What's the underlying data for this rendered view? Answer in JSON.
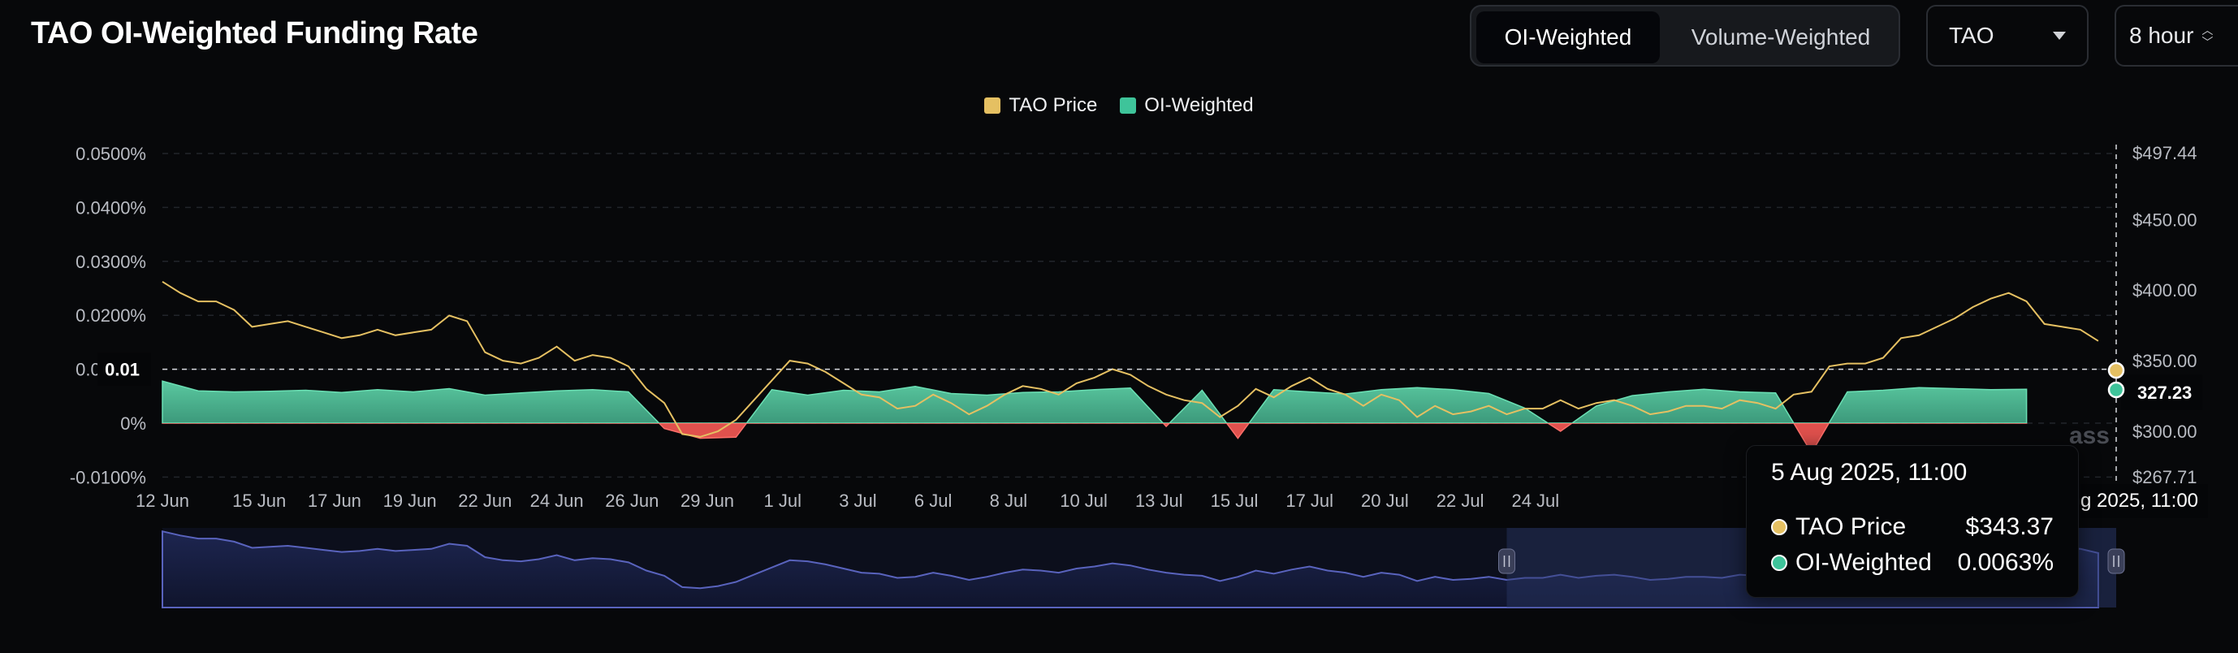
{
  "title": "TAO OI-Weighted Funding Rate",
  "toggle": {
    "options": [
      "OI-Weighted",
      "Volume-Weighted"
    ],
    "active": "OI-Weighted"
  },
  "symbol_select": {
    "value": "TAO"
  },
  "interval_select": {
    "value": "8 hour"
  },
  "colors": {
    "price": "#e5c062",
    "funding_pos": "#3ec49a",
    "funding_neg": "#e0514d",
    "navigator": "#5963bd",
    "background": "#07080a"
  },
  "icons": {
    "dropdown": "caret-down-icon",
    "interval": "up-down-chevron-icon",
    "slider": "drag-handle-icon"
  },
  "crosshair": {
    "y_label": "0.01",
    "price_label": "327.23",
    "x_label": "5 Aug 2025, 11:00",
    "x_label_visible": "g 2025, 11:00"
  },
  "tooltip": {
    "date": "5 Aug 2025, 11:00",
    "rows": [
      {
        "name": "TAO Price",
        "value": "$343.37"
      },
      {
        "name": "OI-Weighted",
        "value": "0.0063%"
      }
    ]
  },
  "watermark": "ass",
  "chart_data": {
    "type": "area",
    "legend": [
      "TAO Price",
      "OI-Weighted"
    ],
    "legend_position": "top-center",
    "grid": true,
    "x_ticks": [
      "12 Jun",
      "15 Jun",
      "17 Jun",
      "19 Jun",
      "22 Jun",
      "24 Jun",
      "26 Jun",
      "29 Jun",
      "1 Jul",
      "3 Jul",
      "6 Jul",
      "8 Jul",
      "10 Jul",
      "13 Jul",
      "15 Jul",
      "17 Jul",
      "20 Jul",
      "22 Jul",
      "24 Jul"
    ],
    "y_left_ticks": [
      "0.0500%",
      "0.0400%",
      "0.0300%",
      "0.0200%",
      "0.0100%",
      "0%",
      "-0.0100%"
    ],
    "y_left_range": [
      -0.01,
      0.05
    ],
    "y_right_ticks": [
      "$497.44",
      "$450.00",
      "$400.00",
      "$350.00",
      "$300.00",
      "$267.71"
    ],
    "y_right_range": [
      267.71,
      497.44
    ],
    "x_range_days": [
      0,
      54.5
    ],
    "series": [
      {
        "name": "TAO Price",
        "axis": "right",
        "points": [
          [
            0,
            406
          ],
          [
            0.5,
            398
          ],
          [
            1,
            392
          ],
          [
            1.5,
            392
          ],
          [
            2,
            386
          ],
          [
            2.5,
            374
          ],
          [
            3,
            376
          ],
          [
            3.5,
            378
          ],
          [
            4,
            374
          ],
          [
            4.5,
            370
          ],
          [
            5,
            366
          ],
          [
            5.5,
            368
          ],
          [
            6,
            372
          ],
          [
            6.5,
            368
          ],
          [
            7,
            370
          ],
          [
            7.5,
            372
          ],
          [
            8,
            382
          ],
          [
            8.5,
            378
          ],
          [
            9,
            356
          ],
          [
            9.5,
            350
          ],
          [
            10,
            348
          ],
          [
            10.5,
            352
          ],
          [
            11,
            360
          ],
          [
            11.5,
            350
          ],
          [
            12,
            354
          ],
          [
            12.5,
            352
          ],
          [
            13,
            346
          ],
          [
            13.5,
            330
          ],
          [
            14,
            320
          ],
          [
            14.5,
            298
          ],
          [
            15,
            296
          ],
          [
            15.5,
            300
          ],
          [
            16,
            308
          ],
          [
            16.5,
            322
          ],
          [
            17,
            336
          ],
          [
            17.5,
            350
          ],
          [
            18,
            348
          ],
          [
            18.5,
            342
          ],
          [
            19,
            334
          ],
          [
            19.5,
            326
          ],
          [
            20,
            324
          ],
          [
            20.5,
            316
          ],
          [
            21,
            318
          ],
          [
            21.5,
            326
          ],
          [
            22,
            320
          ],
          [
            22.5,
            312
          ],
          [
            23,
            318
          ],
          [
            23.5,
            326
          ],
          [
            24,
            332
          ],
          [
            24.5,
            330
          ],
          [
            25,
            326
          ],
          [
            25.5,
            334
          ],
          [
            26,
            338
          ],
          [
            26.5,
            344
          ],
          [
            27,
            340
          ],
          [
            27.5,
            332
          ],
          [
            28,
            326
          ],
          [
            28.5,
            322
          ],
          [
            29,
            320
          ],
          [
            29.5,
            310
          ],
          [
            30,
            318
          ],
          [
            30.5,
            330
          ],
          [
            31,
            324
          ],
          [
            31.5,
            332
          ],
          [
            32,
            338
          ],
          [
            32.5,
            330
          ],
          [
            33,
            326
          ],
          [
            33.5,
            318
          ],
          [
            34,
            326
          ],
          [
            34.5,
            322
          ],
          [
            35,
            310
          ],
          [
            35.5,
            318
          ],
          [
            36,
            312
          ],
          [
            36.5,
            314
          ],
          [
            37,
            318
          ],
          [
            37.5,
            312
          ],
          [
            38,
            316
          ],
          [
            38.5,
            316
          ],
          [
            39,
            322
          ],
          [
            39.5,
            316
          ],
          [
            40,
            320
          ],
          [
            40.5,
            322
          ],
          [
            41,
            318
          ],
          [
            41.5,
            312
          ],
          [
            42,
            314
          ],
          [
            42.5,
            318
          ],
          [
            43,
            318
          ],
          [
            43.5,
            316
          ],
          [
            44,
            322
          ],
          [
            44.5,
            320
          ],
          [
            45,
            316
          ],
          [
            45.5,
            326
          ],
          [
            46,
            328
          ],
          [
            46.5,
            346
          ],
          [
            47,
            348
          ],
          [
            47.5,
            348
          ],
          [
            48,
            352
          ],
          [
            48.5,
            366
          ],
          [
            49,
            368
          ],
          [
            49.5,
            374
          ],
          [
            50,
            380
          ],
          [
            50.5,
            388
          ],
          [
            51,
            394
          ],
          [
            51.5,
            398
          ],
          [
            52,
            392
          ],
          [
            52.5,
            376
          ],
          [
            53,
            374
          ],
          [
            53.5,
            372
          ],
          [
            54,
            364
          ]
        ]
      },
      {
        "name": "OI-Weighted",
        "axis": "left",
        "points": [
          [
            0,
            0.0078
          ],
          [
            1,
            0.006
          ],
          [
            2,
            0.0058
          ],
          [
            3,
            0.0059
          ],
          [
            4,
            0.0061
          ],
          [
            5,
            0.0057
          ],
          [
            6,
            0.0062
          ],
          [
            7,
            0.0058
          ],
          [
            8,
            0.0064
          ],
          [
            9,
            0.0052
          ],
          [
            10,
            0.0056
          ],
          [
            11,
            0.006
          ],
          [
            12,
            0.0062
          ],
          [
            13,
            0.0058
          ],
          [
            14,
            -0.001
          ],
          [
            15,
            -0.0028
          ],
          [
            16,
            -0.0026
          ],
          [
            17,
            0.0062
          ],
          [
            18,
            0.0052
          ],
          [
            19,
            0.0061
          ],
          [
            20,
            0.0058
          ],
          [
            21,
            0.0068
          ],
          [
            22,
            0.0055
          ],
          [
            23,
            0.0052
          ],
          [
            24,
            0.0057
          ],
          [
            25,
            0.0058
          ],
          [
            26,
            0.0062
          ],
          [
            27,
            0.0065
          ],
          [
            28,
            -0.0006
          ],
          [
            29,
            0.0061
          ],
          [
            30,
            -0.0028
          ],
          [
            31,
            0.0062
          ],
          [
            32,
            0.0058
          ],
          [
            33,
            0.0054
          ],
          [
            34,
            0.0062
          ],
          [
            35,
            0.0066
          ],
          [
            36,
            0.0062
          ],
          [
            37,
            0.0055
          ],
          [
            38,
            0.0028
          ],
          [
            39,
            -0.0015
          ],
          [
            40,
            0.0032
          ],
          [
            41,
            0.0051
          ],
          [
            42,
            0.0058
          ],
          [
            43,
            0.0063
          ],
          [
            44,
            0.0058
          ],
          [
            45,
            0.0056
          ],
          [
            46,
            -0.0055
          ],
          [
            47,
            0.0058
          ],
          [
            48,
            0.0061
          ],
          [
            49,
            0.0066
          ],
          [
            50,
            0.0064
          ],
          [
            51,
            0.0062
          ],
          [
            52,
            0.0063
          ]
        ]
      }
    ],
    "navigator": {
      "type": "area",
      "selected_range_days": [
        37.5,
        54.5
      ]
    }
  }
}
